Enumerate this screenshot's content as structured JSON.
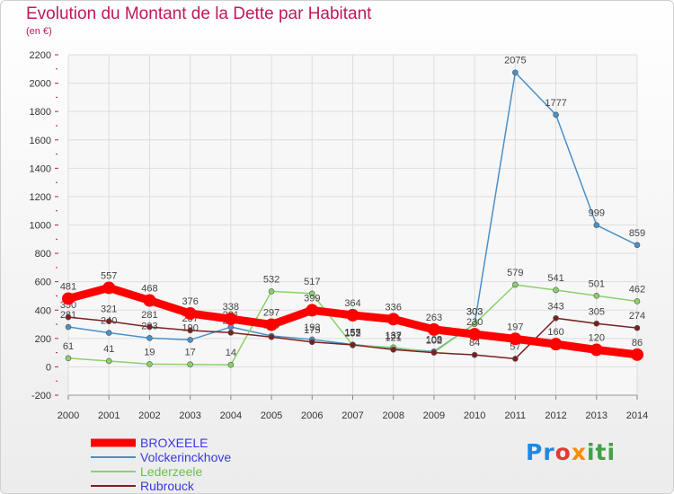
{
  "chart_data": {
    "type": "line",
    "title": "Evolution du Montant de la Dette par Habitant",
    "subtitle": "(en €)",
    "x": [
      2000,
      2001,
      2002,
      2003,
      2004,
      2005,
      2006,
      2007,
      2008,
      2009,
      2010,
      2011,
      2012,
      2013,
      2014
    ],
    "ylim": [
      -200,
      2200
    ],
    "yticks": [
      -200,
      0,
      200,
      400,
      600,
      800,
      1000,
      1200,
      1400,
      1600,
      1800,
      2000,
      2200
    ],
    "grid": true,
    "legend_position": "bottom-left",
    "series": [
      {
        "name": "BROXEELE",
        "color": "#ff0000",
        "values": [
          481,
          557,
          468,
          376,
          338,
          297,
          399,
          364,
          336,
          263,
          230,
          197,
          160,
          120,
          86
        ]
      },
      {
        "name": "Volckerinckhove",
        "color": "#4a90c8",
        "values": [
          281,
          240,
          203,
          190,
          281,
          218,
          193,
          157,
          132,
          108,
          303,
          2075,
          1777,
          999,
          859
        ]
      },
      {
        "name": "Lederzeele",
        "color": "#8bd16b",
        "values": [
          61,
          41,
          19,
          17,
          14,
          532,
          517,
          152,
          137,
          102,
          303,
          579,
          541,
          501,
          462
        ]
      },
      {
        "name": "Rubrouck",
        "color": "#7b2020",
        "values": [
          350,
          321,
          281,
          257,
          241,
          210,
          175,
          155,
          121,
          100,
          84,
          57,
          343,
          305,
          274
        ]
      }
    ]
  },
  "logo": {
    "p": "Pr",
    "o": "o",
    "x": "x",
    "iti": "iti"
  }
}
